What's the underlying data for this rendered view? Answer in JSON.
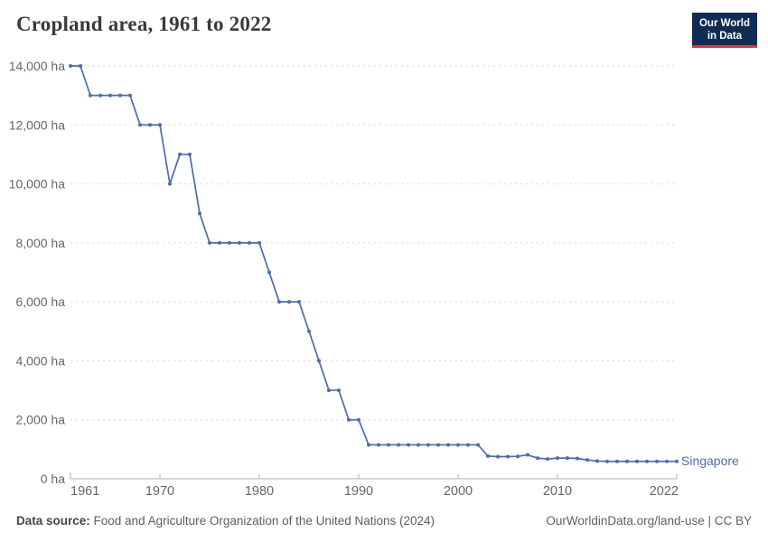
{
  "header": {
    "title": "Cropland area, 1961 to 2022"
  },
  "logo": {
    "line1": "Our World",
    "line2": "in Data",
    "bg_color": "#102c54",
    "accent_color": "#e0373d"
  },
  "chart_data": {
    "type": "line",
    "title": "Cropland area, 1961 to 2022",
    "unit": "ha",
    "xlabel": "",
    "ylabel": "",
    "xlim": [
      1961,
      2022
    ],
    "ylim": [
      0,
      14000
    ],
    "grid": "dashed horizontal gridlines",
    "legend_position": "end-of-line label",
    "y_ticks": [
      {
        "value": 0,
        "label": "0 ha"
      },
      {
        "value": 2000,
        "label": "2,000 ha"
      },
      {
        "value": 4000,
        "label": "4,000 ha"
      },
      {
        "value": 6000,
        "label": "6,000 ha"
      },
      {
        "value": 8000,
        "label": "8,000 ha"
      },
      {
        "value": 10000,
        "label": "10,000 ha"
      },
      {
        "value": 12000,
        "label": "12,000 ha"
      },
      {
        "value": 14000,
        "label": "14,000 ha"
      }
    ],
    "x_ticks": [
      {
        "value": 1961,
        "label": "1961"
      },
      {
        "value": 1970,
        "label": "1970"
      },
      {
        "value": 1980,
        "label": "1980"
      },
      {
        "value": 1990,
        "label": "1990"
      },
      {
        "value": 2000,
        "label": "2000"
      },
      {
        "value": 2010,
        "label": "2010"
      },
      {
        "value": 2022,
        "label": "2022"
      }
    ],
    "series": [
      {
        "name": "Singapore",
        "color": "#4c6da8",
        "x": [
          1961,
          1962,
          1963,
          1964,
          1965,
          1966,
          1967,
          1968,
          1969,
          1970,
          1971,
          1972,
          1973,
          1974,
          1975,
          1976,
          1977,
          1978,
          1979,
          1980,
          1981,
          1982,
          1983,
          1984,
          1985,
          1986,
          1987,
          1988,
          1989,
          1990,
          1991,
          1992,
          1993,
          1994,
          1995,
          1996,
          1997,
          1998,
          1999,
          2000,
          2001,
          2002,
          2003,
          2004,
          2005,
          2006,
          2007,
          2008,
          2009,
          2010,
          2011,
          2012,
          2013,
          2014,
          2015,
          2016,
          2017,
          2018,
          2019,
          2020,
          2021,
          2022
        ],
        "values": [
          14000,
          14000,
          13000,
          13000,
          13000,
          13000,
          13000,
          12000,
          12000,
          12000,
          10000,
          11000,
          11000,
          9000,
          8000,
          8000,
          8000,
          8000,
          8000,
          8000,
          7000,
          6000,
          6000,
          6000,
          5000,
          4000,
          3000,
          3000,
          2000,
          2000,
          1150,
          1150,
          1150,
          1150,
          1150,
          1150,
          1150,
          1150,
          1150,
          1150,
          1150,
          1150,
          770,
          750,
          750,
          760,
          810,
          700,
          670,
          700,
          700,
          690,
          640,
          600,
          590,
          590,
          590,
          590,
          590,
          590,
          590,
          590
        ]
      }
    ]
  },
  "style_colors": {
    "grid": "#d9d9d9",
    "axis": "#b0b0b0",
    "tick_label": "#666666",
    "title_text": "#3a3a3a"
  },
  "footer": {
    "source_label": "Data source:",
    "source_text": " Food and Agriculture Organization of the United Nations (2024)",
    "credit": "OurWorldinData.org/land-use | CC BY"
  }
}
